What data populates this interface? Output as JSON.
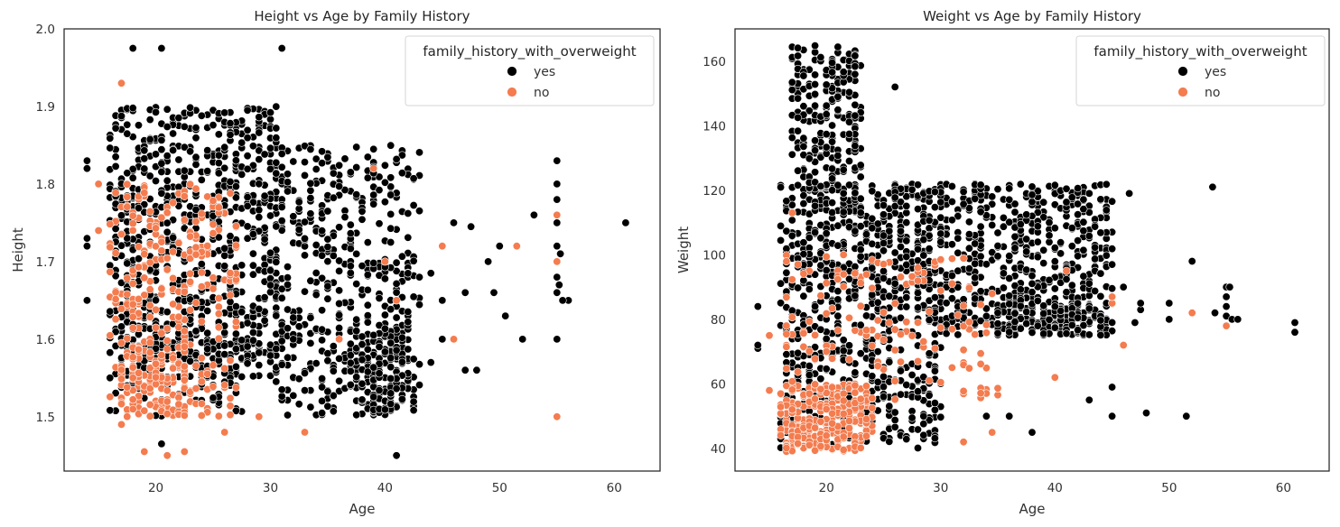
{
  "chart_data": [
    {
      "type": "scatter",
      "title": "Height vs Age by Family History",
      "xlabel": "Age",
      "ylabel": "Height",
      "xlim": [
        12,
        64
      ],
      "ylim": [
        1.43,
        2.0
      ],
      "xticks": [
        20,
        30,
        40,
        50,
        60
      ],
      "yticks": [
        1.5,
        1.6,
        1.7,
        1.8,
        1.9,
        2.0
      ],
      "ytick_labels": [
        "1.5",
        "1.6",
        "1.7",
        "1.8",
        "1.9",
        "2.0"
      ],
      "legend": {
        "title": "family_history_with_overweight",
        "placement": "top-right",
        "entries": [
          {
            "label": "yes",
            "color": "#000000"
          },
          {
            "label": "no",
            "color": "#f47c4f"
          }
        ]
      },
      "clusters": [
        {
          "series": "yes",
          "x": [
            16,
            31
          ],
          "y": [
            1.55,
            1.9
          ],
          "n": 800
        },
        {
          "series": "yes",
          "x": [
            16,
            28
          ],
          "y": [
            1.5,
            1.62
          ],
          "n": 150
        },
        {
          "series": "yes",
          "x": [
            30,
            43
          ],
          "y": [
            1.5,
            1.85
          ],
          "n": 450
        },
        {
          "series": "yes",
          "x": [
            37,
            42
          ],
          "y": [
            1.5,
            1.62
          ],
          "n": 150
        },
        {
          "series": "no",
          "x": [
            16,
            27
          ],
          "y": [
            1.5,
            1.8
          ],
          "n": 260
        },
        {
          "series": "no",
          "x": [
            17,
            23
          ],
          "y": [
            1.5,
            1.6
          ],
          "n": 100
        }
      ],
      "points": [
        {
          "series": "yes",
          "x": 14,
          "y": 1.83
        },
        {
          "series": "yes",
          "x": 14,
          "y": 1.82
        },
        {
          "series": "yes",
          "x": 14,
          "y": 1.73
        },
        {
          "series": "yes",
          "x": 14,
          "y": 1.72
        },
        {
          "series": "yes",
          "x": 14,
          "y": 1.65
        },
        {
          "series": "yes",
          "x": 18,
          "y": 1.975
        },
        {
          "series": "yes",
          "x": 20.5,
          "y": 1.975
        },
        {
          "series": "yes",
          "x": 31,
          "y": 1.975
        },
        {
          "series": "yes",
          "x": 20.5,
          "y": 1.465
        },
        {
          "series": "yes",
          "x": 41,
          "y": 1.45
        },
        {
          "series": "yes",
          "x": 44,
          "y": 1.57
        },
        {
          "series": "yes",
          "x": 45,
          "y": 1.6
        },
        {
          "series": "yes",
          "x": 45,
          "y": 1.65
        },
        {
          "series": "yes",
          "x": 47,
          "y": 1.66
        },
        {
          "series": "yes",
          "x": 47,
          "y": 1.56
        },
        {
          "series": "yes",
          "x": 48,
          "y": 1.56
        },
        {
          "series": "yes",
          "x": 46,
          "y": 1.75
        },
        {
          "series": "yes",
          "x": 47.5,
          "y": 1.745
        },
        {
          "series": "yes",
          "x": 49,
          "y": 1.7
        },
        {
          "series": "yes",
          "x": 50,
          "y": 1.72
        },
        {
          "series": "yes",
          "x": 49.5,
          "y": 1.66
        },
        {
          "series": "yes",
          "x": 50.5,
          "y": 1.63
        },
        {
          "series": "yes",
          "x": 52,
          "y": 1.6
        },
        {
          "series": "yes",
          "x": 53,
          "y": 1.76
        },
        {
          "series": "yes",
          "x": 55,
          "y": 1.83
        },
        {
          "series": "yes",
          "x": 55,
          "y": 1.8
        },
        {
          "series": "yes",
          "x": 55,
          "y": 1.78
        },
        {
          "series": "yes",
          "x": 55,
          "y": 1.75
        },
        {
          "series": "yes",
          "x": 55,
          "y": 1.72
        },
        {
          "series": "yes",
          "x": 55.3,
          "y": 1.71
        },
        {
          "series": "yes",
          "x": 55,
          "y": 1.68
        },
        {
          "series": "yes",
          "x": 55.2,
          "y": 1.67
        },
        {
          "series": "yes",
          "x": 55,
          "y": 1.66
        },
        {
          "series": "yes",
          "x": 55.5,
          "y": 1.65
        },
        {
          "series": "yes",
          "x": 56,
          "y": 1.65
        },
        {
          "series": "yes",
          "x": 55,
          "y": 1.6
        },
        {
          "series": "yes",
          "x": 61,
          "y": 1.75
        },
        {
          "series": "yes",
          "x": 44,
          "y": 1.685
        },
        {
          "series": "yes",
          "x": 43,
          "y": 1.68
        },
        {
          "series": "no",
          "x": 55,
          "y": 1.5
        },
        {
          "series": "no",
          "x": 55,
          "y": 1.76
        },
        {
          "series": "no",
          "x": 55,
          "y": 1.7
        },
        {
          "series": "no",
          "x": 51.5,
          "y": 1.72
        },
        {
          "series": "no",
          "x": 46,
          "y": 1.6
        },
        {
          "series": "no",
          "x": 45,
          "y": 1.72
        },
        {
          "series": "no",
          "x": 41,
          "y": 1.65
        },
        {
          "series": "no",
          "x": 40,
          "y": 1.7
        },
        {
          "series": "no",
          "x": 39,
          "y": 1.82
        },
        {
          "series": "no",
          "x": 17,
          "y": 1.93
        },
        {
          "series": "no",
          "x": 15,
          "y": 1.8
        },
        {
          "series": "no",
          "x": 15,
          "y": 1.74
        },
        {
          "series": "no",
          "x": 21,
          "y": 1.45
        },
        {
          "series": "no",
          "x": 22.5,
          "y": 1.455
        },
        {
          "series": "no",
          "x": 19,
          "y": 1.455
        },
        {
          "series": "no",
          "x": 33,
          "y": 1.48
        },
        {
          "series": "no",
          "x": 29,
          "y": 1.5
        },
        {
          "series": "no",
          "x": 26,
          "y": 1.48
        },
        {
          "series": "no",
          "x": 17,
          "y": 1.49
        },
        {
          "series": "no",
          "x": 36,
          "y": 1.6
        }
      ]
    },
    {
      "type": "scatter",
      "title": "Weight vs Age by Family History",
      "xlabel": "Age",
      "ylabel": "Weight",
      "xlim": [
        12,
        64
      ],
      "ylim": [
        33,
        170
      ],
      "xticks": [
        20,
        30,
        40,
        50,
        60
      ],
      "yticks": [
        40,
        60,
        80,
        100,
        120,
        140,
        160
      ],
      "ytick_labels": [
        "40",
        "60",
        "80",
        "100",
        "120",
        "140",
        "160"
      ],
      "legend": {
        "title": "family_history_with_overweight",
        "placement": "top-right",
        "entries": [
          {
            "label": "yes",
            "color": "#000000"
          },
          {
            "label": "no",
            "color": "#f47c4f"
          }
        ]
      },
      "clusters": [
        {
          "series": "yes",
          "x": [
            17,
            23
          ],
          "y": [
            120,
            165
          ],
          "n": 220
        },
        {
          "series": "yes",
          "x": [
            16,
            45
          ],
          "y": [
            75,
            122
          ],
          "n": 1000
        },
        {
          "series": "yes",
          "x": [
            16,
            30
          ],
          "y": [
            40,
            75
          ],
          "n": 300
        },
        {
          "series": "yes",
          "x": [
            35,
            45
          ],
          "y": [
            75,
            85
          ],
          "n": 150
        },
        {
          "series": "no",
          "x": [
            16,
            24
          ],
          "y": [
            39,
            60
          ],
          "n": 260
        },
        {
          "series": "no",
          "x": [
            16,
            35
          ],
          "y": [
            55,
            100
          ],
          "n": 140
        }
      ],
      "points": [
        {
          "series": "yes",
          "x": 14,
          "y": 84
        },
        {
          "series": "yes",
          "x": 14,
          "y": 72
        },
        {
          "series": "yes",
          "x": 14,
          "y": 71
        },
        {
          "series": "yes",
          "x": 26,
          "y": 152
        },
        {
          "series": "yes",
          "x": 46.5,
          "y": 119
        },
        {
          "series": "yes",
          "x": 52,
          "y": 98
        },
        {
          "series": "yes",
          "x": 53.8,
          "y": 121
        },
        {
          "series": "yes",
          "x": 55,
          "y": 90
        },
        {
          "series": "yes",
          "x": 55.3,
          "y": 90
        },
        {
          "series": "yes",
          "x": 55,
          "y": 87
        },
        {
          "series": "yes",
          "x": 55,
          "y": 84
        },
        {
          "series": "yes",
          "x": 55,
          "y": 81
        },
        {
          "series": "yes",
          "x": 55.5,
          "y": 80
        },
        {
          "series": "yes",
          "x": 56,
          "y": 80
        },
        {
          "series": "yes",
          "x": 54,
          "y": 82
        },
        {
          "series": "yes",
          "x": 61,
          "y": 79
        },
        {
          "series": "yes",
          "x": 61,
          "y": 76
        },
        {
          "series": "yes",
          "x": 51.5,
          "y": 50
        },
        {
          "series": "yes",
          "x": 48,
          "y": 51
        },
        {
          "series": "yes",
          "x": 45,
          "y": 50
        },
        {
          "series": "yes",
          "x": 45,
          "y": 59
        },
        {
          "series": "yes",
          "x": 43,
          "y": 55
        },
        {
          "series": "yes",
          "x": 50,
          "y": 85
        },
        {
          "series": "yes",
          "x": 50,
          "y": 80
        },
        {
          "series": "yes",
          "x": 47.5,
          "y": 85
        },
        {
          "series": "yes",
          "x": 47.5,
          "y": 83
        },
        {
          "series": "yes",
          "x": 47,
          "y": 79
        },
        {
          "series": "yes",
          "x": 45,
          "y": 97
        },
        {
          "series": "yes",
          "x": 46,
          "y": 90
        },
        {
          "series": "yes",
          "x": 43,
          "y": 119
        },
        {
          "series": "yes",
          "x": 38,
          "y": 45
        },
        {
          "series": "yes",
          "x": 34,
          "y": 50
        },
        {
          "series": "yes",
          "x": 36,
          "y": 50
        },
        {
          "series": "no",
          "x": 15,
          "y": 75
        },
        {
          "series": "no",
          "x": 15,
          "y": 58
        },
        {
          "series": "no",
          "x": 17,
          "y": 113
        },
        {
          "series": "no",
          "x": 52,
          "y": 82
        },
        {
          "series": "no",
          "x": 55,
          "y": 78
        },
        {
          "series": "no",
          "x": 46,
          "y": 72
        },
        {
          "series": "no",
          "x": 45,
          "y": 85
        },
        {
          "series": "no",
          "x": 45,
          "y": 87
        },
        {
          "series": "no",
          "x": 40,
          "y": 62
        },
        {
          "series": "no",
          "x": 41,
          "y": 95
        },
        {
          "series": "no",
          "x": 32,
          "y": 42
        },
        {
          "series": "no",
          "x": 34.5,
          "y": 45
        }
      ]
    }
  ]
}
